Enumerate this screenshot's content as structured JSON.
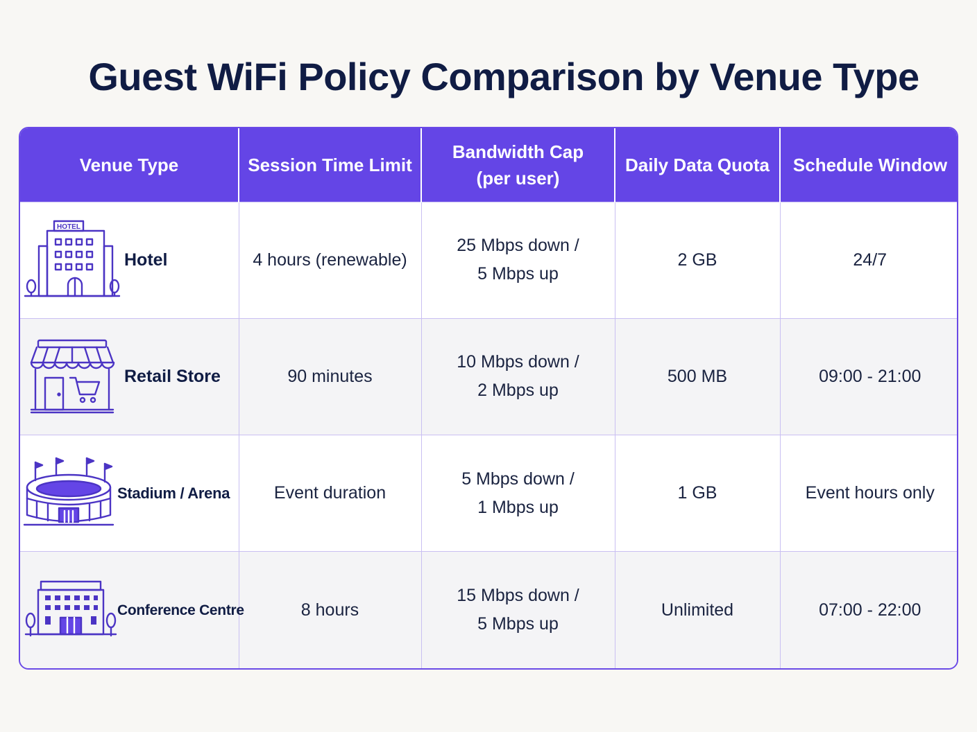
{
  "title": "Guest WiFi Policy Comparison by Venue Type",
  "colors": {
    "accent": "#6445e6",
    "title": "#101c44",
    "icon_stroke": "#4b34c4",
    "row_alt": "#f4f4f6",
    "grid": "#c9bff2"
  },
  "columns": [
    "Venue Type",
    "Session Time Limit",
    [
      "Bandwidth Cap",
      "(per user)"
    ],
    "Daily Data Quota",
    "Schedule Window"
  ],
  "rows": [
    {
      "icon": "hotel-building-icon",
      "icon_sign": "HOTEL",
      "venue": "Hotel",
      "session": "4 hours (renewable)",
      "bandwidth": [
        "25 Mbps down /",
        "5 Mbps up"
      ],
      "quota": "2 GB",
      "schedule": "24/7"
    },
    {
      "icon": "retail-store-icon",
      "venue": "Retail Store",
      "session": "90 minutes",
      "bandwidth": [
        "10 Mbps down /",
        "2 Mbps up"
      ],
      "quota": "500 MB",
      "schedule": "09:00 - 21:00"
    },
    {
      "icon": "stadium-icon",
      "venue": "Stadium / Arena",
      "session": "Event duration",
      "bandwidth": [
        "5 Mbps down /",
        "1 Mbps up"
      ],
      "quota": "1 GB",
      "schedule": "Event hours only"
    },
    {
      "icon": "conference-centre-icon",
      "venue": "Conference Centre",
      "session": "8 hours",
      "bandwidth": [
        "15 Mbps down /",
        "5 Mbps up"
      ],
      "quota": "Unlimited",
      "schedule": "07:00 - 22:00"
    }
  ]
}
